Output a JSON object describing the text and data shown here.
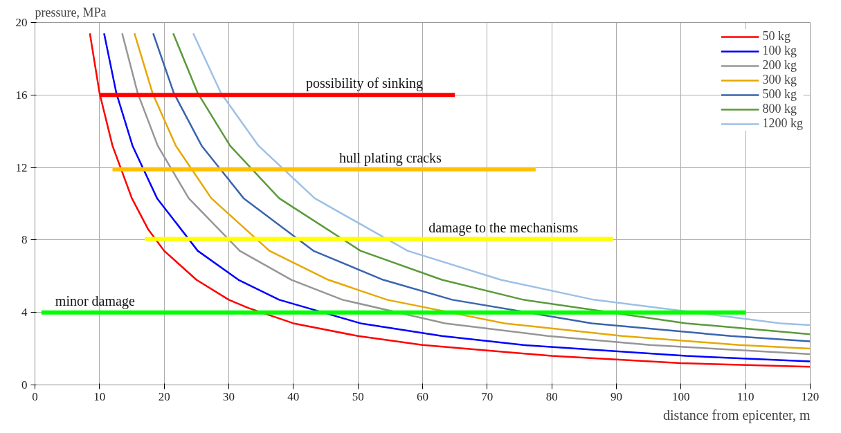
{
  "chart_data": {
    "type": "line",
    "xlabel": "distance from epicenter, m",
    "ylabel": "pressure, MPa",
    "xlim": [
      0,
      120
    ],
    "ylim": [
      0,
      20
    ],
    "xticks": [
      0,
      10,
      20,
      30,
      40,
      50,
      60,
      70,
      80,
      90,
      100,
      110,
      120
    ],
    "yticks": [
      0,
      4,
      8,
      12,
      16,
      20
    ],
    "grid": true,
    "legend": "top right",
    "line_style": "solid",
    "marker": "none",
    "series": [
      {
        "name": "50 kg",
        "color": "#ff0000",
        "x": [
          8.5,
          10,
          12,
          15,
          17.5,
          20,
          25,
          30,
          33,
          40,
          50,
          60,
          80,
          100,
          120
        ],
        "values": [
          19.4,
          16.1,
          13.2,
          10.3,
          8.6,
          7.4,
          5.8,
          4.7,
          4.25,
          3.4,
          2.7,
          2.2,
          1.6,
          1.2,
          1.0
        ]
      },
      {
        "name": "100 kg",
        "color": "#0000ff",
        "x": [
          10.7,
          12.6,
          15.1,
          18.9,
          25.2,
          31.5,
          37.8,
          50.4,
          63,
          75.6,
          100.8,
          120
        ],
        "values": [
          19.4,
          16.1,
          13.2,
          10.3,
          7.4,
          5.8,
          4.7,
          3.4,
          2.7,
          2.2,
          1.6,
          1.3
        ]
      },
      {
        "name": "200 kg",
        "color": "#969696",
        "x": [
          13.5,
          15.9,
          19.0,
          23.8,
          31.7,
          39.7,
          47.6,
          63.5,
          79.4,
          95.2,
          120
        ],
        "values": [
          19.4,
          16.1,
          13.2,
          10.3,
          7.4,
          5.8,
          4.7,
          3.4,
          2.7,
          2.2,
          1.7
        ]
      },
      {
        "name": "300 kg",
        "color": "#e6a800",
        "x": [
          15.4,
          18.2,
          21.8,
          27.3,
          36.3,
          45.4,
          54.5,
          72.7,
          90.9,
          109,
          120
        ],
        "values": [
          19.4,
          16.1,
          13.2,
          10.3,
          7.4,
          5.8,
          4.7,
          3.4,
          2.7,
          2.2,
          2.0
        ]
      },
      {
        "name": "500 kg",
        "color": "#3a64ad",
        "x": [
          18.3,
          21.5,
          25.8,
          32.3,
          43.1,
          53.9,
          64.6,
          86.2,
          107.7,
          120
        ],
        "values": [
          19.4,
          16.1,
          13.2,
          10.3,
          7.4,
          5.8,
          4.7,
          3.4,
          2.7,
          2.4
        ]
      },
      {
        "name": "800 kg",
        "color": "#5a9a3a",
        "x": [
          21.4,
          25.2,
          30.2,
          37.8,
          50.4,
          63,
          75.6,
          100.8,
          120
        ],
        "values": [
          19.4,
          16.1,
          13.2,
          10.3,
          7.4,
          5.8,
          4.7,
          3.4,
          2.8
        ]
      },
      {
        "name": "1200 kg",
        "color": "#9dc0e6",
        "x": [
          24.5,
          28.8,
          34.6,
          43.3,
          57.7,
          72.1,
          86.5,
          115.4,
          120
        ],
        "values": [
          19.4,
          16.1,
          13.2,
          10.3,
          7.4,
          5.8,
          4.7,
          3.4,
          3.3
        ]
      },
      {
        "color": "#ff0000",
        "x": [
          10,
          65
        ],
        "values": [
          16,
          16
        ]
      },
      {
        "color": "#ffc000",
        "x": [
          12,
          77.5
        ],
        "values": [
          11.9,
          11.9
        ]
      },
      {
        "color": "#ffff00",
        "x": [
          17,
          89.5
        ],
        "values": [
          8.05,
          8.05
        ]
      },
      {
        "color": "#00ff00",
        "x": [
          1,
          110
        ],
        "values": [
          4,
          4
        ]
      }
    ],
    "annotations": [
      {
        "text": "possibility of sinking",
        "x": 51,
        "y": 16
      },
      {
        "text": "hull plating cracks",
        "x": 55,
        "y": 11.9
      },
      {
        "text": "damage to the mechanisms",
        "x": 72.5,
        "y": 8.05
      },
      {
        "text": "minor damage",
        "x": 9.3,
        "y": 4
      }
    ]
  }
}
